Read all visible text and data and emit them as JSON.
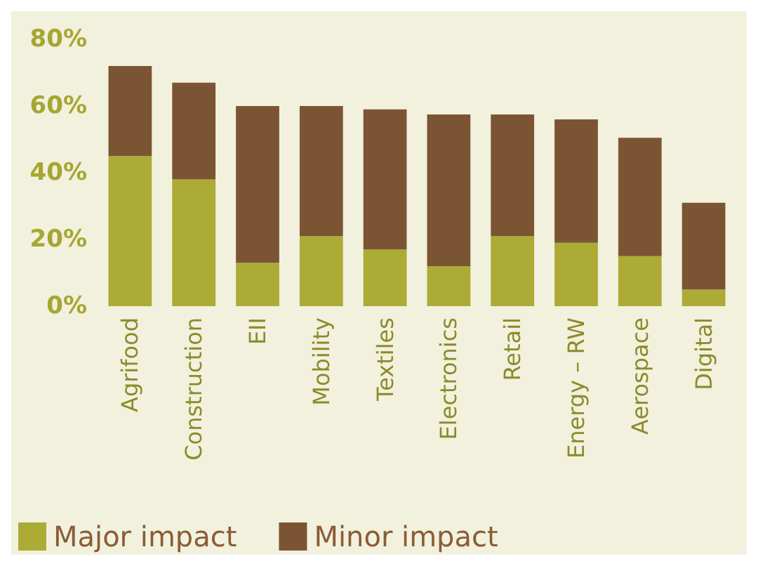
{
  "chart_data": {
    "type": "bar",
    "stacked": true,
    "categories": [
      "Agrifood",
      "Construction",
      "EII",
      "Mobility",
      "Textiles",
      "Electronics",
      "Retail",
      "Energy – RW",
      "Aerospace",
      "Digital"
    ],
    "series": [
      {
        "name": "Major impact",
        "color": "#abab35",
        "values": [
          45,
          38,
          13,
          21,
          17,
          12,
          21,
          19,
          15,
          5
        ]
      },
      {
        "name": "Minor impact",
        "color": "#7b5533",
        "values": [
          27,
          29,
          47,
          39,
          42,
          45.5,
          36.5,
          37,
          35.5,
          26
        ]
      }
    ],
    "ylim": [
      0,
      80
    ],
    "yticks": [
      {
        "value": 0,
        "label": "0%"
      },
      {
        "value": 20,
        "label": "20%"
      },
      {
        "value": 40,
        "label": "40%"
      },
      {
        "value": 60,
        "label": "60%"
      },
      {
        "value": 80,
        "label": "80%"
      }
    ],
    "grid": false,
    "legend": "bottom left"
  }
}
